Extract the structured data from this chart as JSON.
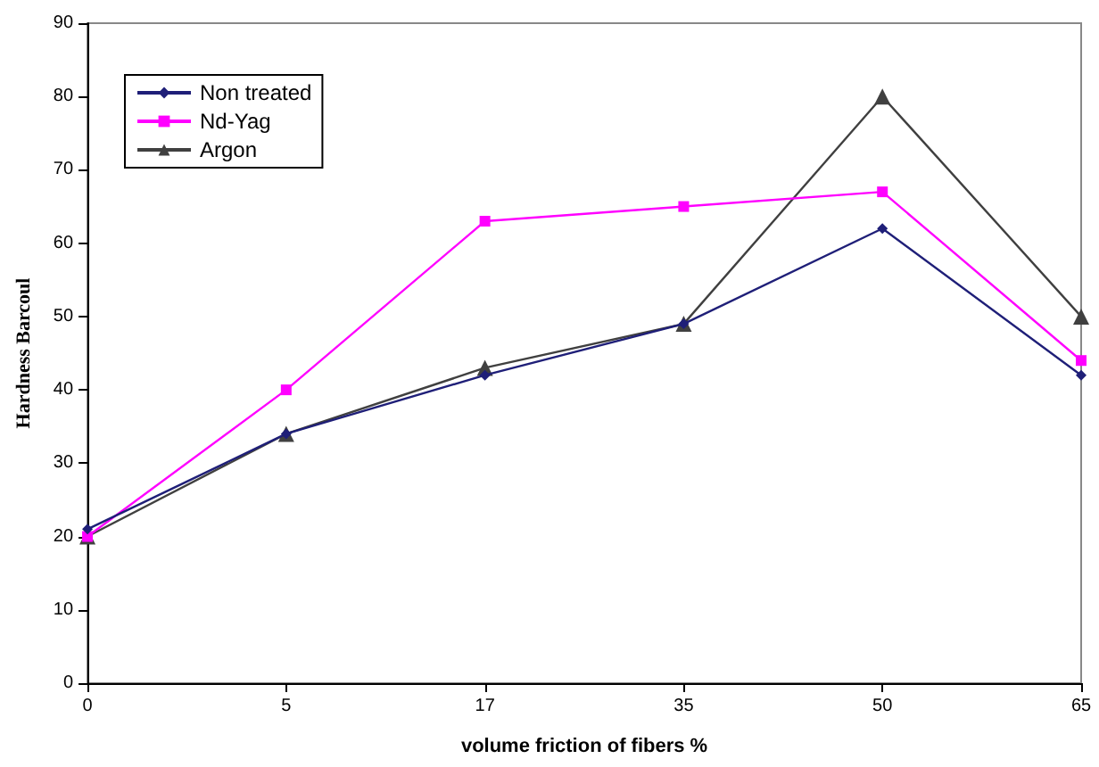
{
  "chart_data": {
    "type": "line",
    "xlabel": "volume friction of fibers %",
    "ylabel": "Hardness Barcoul",
    "categories": [
      "0",
      "5",
      "17",
      "35",
      "50",
      "65"
    ],
    "series": [
      {
        "name": "Non treated",
        "color": "#1f1f78",
        "marker": "diamond",
        "values": [
          21,
          34,
          42,
          49,
          62,
          42
        ]
      },
      {
        "name": "Nd-Yag",
        "color": "#ff00ff",
        "marker": "square",
        "values": [
          20,
          40,
          63,
          65,
          67,
          44
        ]
      },
      {
        "name": "Argon",
        "color": "#404040",
        "marker": "triangle",
        "values": [
          20,
          34,
          43,
          49,
          80,
          50
        ]
      }
    ],
    "ylim": [
      0,
      90
    ],
    "yticks": [
      0,
      10,
      20,
      30,
      40,
      50,
      60,
      70,
      80,
      90
    ],
    "grid": false,
    "legend": "top left",
    "line_style": "solid"
  }
}
